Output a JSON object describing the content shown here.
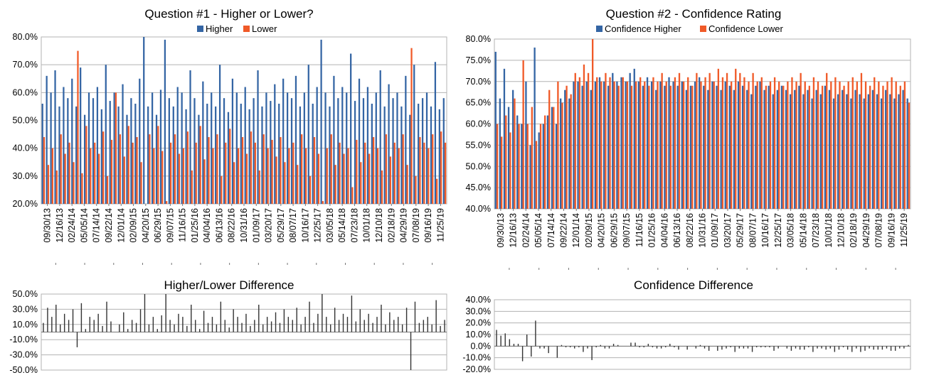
{
  "colors": {
    "higher": "#3465a4",
    "lower": "#f05a28",
    "diff": "#333333",
    "grid": "#b3b3b3",
    "axis": "#777777"
  },
  "chart_data": [
    {
      "id": "q1",
      "type": "bar",
      "title": "Question #1 - Higher or Lower?",
      "legend": [
        "Higher",
        "Lower"
      ],
      "legend_position": "top",
      "ylim": [
        0.2,
        0.8
      ],
      "y_ticks": [
        "20.0%",
        "30.0%",
        "40.0%",
        "50.0%",
        "60.0%",
        "70.0%",
        "80.0%"
      ],
      "x_labels": [
        "09/30/13",
        "12/16/13",
        "02/24/14",
        "05/05/14",
        "07/14/14",
        "09/22/14",
        "12/01/14",
        "02/09/15",
        "04/20/15",
        "06/29/15",
        "09/07/15",
        "11/16/15",
        "01/25/16",
        "04/04/16",
        "06/13/16",
        "08/22/16",
        "10/31/16",
        "01/09/17",
        "03/20/17",
        "05/29/17",
        "08/07/17",
        "10/16/17",
        "12/25/17",
        "03/05/18",
        "05/14/18",
        "07/23/18",
        "10/01/18",
        "12/10/18",
        "02/18/19",
        "04/29/19",
        "07/08/19",
        "09/16/19",
        "11/25/19"
      ],
      "series": [
        {
          "name": "Higher",
          "values": [
            0.56,
            0.66,
            0.6,
            0.68,
            0.55,
            0.62,
            0.58,
            0.65,
            0.55,
            0.69,
            0.52,
            0.6,
            0.58,
            0.62,
            0.54,
            0.7,
            0.57,
            0.6,
            0.55,
            0.63,
            0.52,
            0.58,
            0.56,
            0.65,
            0.8,
            0.55,
            0.6,
            0.52,
            0.61,
            0.79,
            0.58,
            0.55,
            0.62,
            0.6,
            0.54,
            0.68,
            0.58,
            0.52,
            0.64,
            0.56,
            0.6,
            0.55,
            0.7,
            0.58,
            0.53,
            0.65,
            0.6,
            0.56,
            0.62,
            0.54,
            0.58,
            0.68,
            0.55,
            0.6,
            0.57,
            0.63,
            0.56,
            0.65,
            0.6,
            0.58,
            0.66,
            0.55,
            0.6,
            0.7,
            0.56,
            0.62,
            0.79,
            0.6,
            0.55,
            0.66,
            0.58,
            0.62,
            0.6,
            0.74,
            0.57,
            0.65,
            0.58,
            0.62,
            0.56,
            0.6,
            0.68,
            0.55,
            0.63,
            0.58,
            0.6,
            0.55,
            0.66,
            0.52,
            0.7,
            0.56,
            0.58,
            0.6,
            0.55,
            0.71,
            0.54,
            0.58
          ]
        },
        {
          "name": "Lower",
          "values": [
            0.44,
            0.34,
            0.4,
            0.32,
            0.45,
            0.38,
            0.42,
            0.35,
            0.75,
            0.31,
            0.48,
            0.4,
            0.42,
            0.38,
            0.46,
            0.3,
            0.43,
            0.6,
            0.45,
            0.37,
            0.48,
            0.42,
            0.44,
            0.35,
            0.2,
            0.45,
            0.4,
            0.48,
            0.39,
            0.21,
            0.42,
            0.45,
            0.38,
            0.4,
            0.46,
            0.32,
            0.42,
            0.48,
            0.36,
            0.44,
            0.4,
            0.45,
            0.3,
            0.42,
            0.47,
            0.35,
            0.4,
            0.44,
            0.38,
            0.46,
            0.42,
            0.32,
            0.45,
            0.4,
            0.43,
            0.37,
            0.44,
            0.35,
            0.4,
            0.42,
            0.34,
            0.45,
            0.4,
            0.3,
            0.44,
            0.38,
            0.21,
            0.4,
            0.45,
            0.34,
            0.42,
            0.38,
            0.4,
            0.26,
            0.43,
            0.35,
            0.42,
            0.38,
            0.44,
            0.4,
            0.32,
            0.45,
            0.37,
            0.42,
            0.4,
            0.45,
            0.34,
            0.76,
            0.3,
            0.44,
            0.42,
            0.4,
            0.45,
            0.29,
            0.46,
            0.42
          ]
        }
      ]
    },
    {
      "id": "q2",
      "type": "bar",
      "title": "Question #2 - Confidence Rating",
      "legend": [
        "Confidence Higher",
        "Confidence Lower"
      ],
      "legend_position": "top",
      "ylim": [
        0.4,
        0.8
      ],
      "y_ticks": [
        "40.0%",
        "45.0%",
        "50.0%",
        "55.0%",
        "60.0%",
        "65.0%",
        "70.0%",
        "75.0%",
        "80.0%"
      ],
      "x_labels": [
        "09/30/13",
        "12/16/13",
        "02/24/14",
        "05/05/14",
        "07/14/14",
        "09/22/14",
        "12/01/14",
        "02/09/15",
        "04/20/15",
        "06/29/15",
        "09/07/15",
        "11/16/15",
        "01/25/16",
        "04/04/16",
        "06/13/16",
        "08/22/16",
        "10/31/16",
        "01/09/17",
        "03/20/17",
        "05/29/17",
        "08/07/17",
        "10/16/17",
        "12/25/17",
        "03/05/18",
        "05/14/18",
        "07/23/18",
        "10/01/18",
        "12/10/18",
        "02/18/19",
        "04/29/19",
        "07/08/19",
        "09/16/19",
        "11/25/19"
      ],
      "series": [
        {
          "name": "Confidence Higher",
          "values": [
            0.77,
            0.66,
            0.73,
            0.64,
            0.68,
            0.62,
            0.6,
            0.7,
            0.55,
            0.78,
            0.58,
            0.6,
            0.62,
            0.64,
            0.6,
            0.66,
            0.68,
            0.66,
            0.7,
            0.7,
            0.69,
            0.7,
            0.68,
            0.7,
            0.71,
            0.7,
            0.69,
            0.72,
            0.7,
            0.71,
            0.7,
            0.72,
            0.73,
            0.7,
            0.69,
            0.71,
            0.7,
            0.68,
            0.7,
            0.69,
            0.71,
            0.7,
            0.69,
            0.7,
            0.68,
            0.69,
            0.7,
            0.71,
            0.69,
            0.68,
            0.7,
            0.69,
            0.68,
            0.7,
            0.69,
            0.68,
            0.7,
            0.69,
            0.68,
            0.67,
            0.69,
            0.7,
            0.68,
            0.69,
            0.67,
            0.68,
            0.69,
            0.68,
            0.67,
            0.68,
            0.69,
            0.67,
            0.68,
            0.66,
            0.68,
            0.67,
            0.69,
            0.68,
            0.66,
            0.67,
            0.68,
            0.67,
            0.66,
            0.68,
            0.67,
            0.66,
            0.67,
            0.68,
            0.67,
            0.66,
            0.68,
            0.67,
            0.66,
            0.67,
            0.68,
            0.66
          ]
        },
        {
          "name": "Confidence Lower",
          "values": [
            0.6,
            0.57,
            0.62,
            0.58,
            0.66,
            0.6,
            0.75,
            0.6,
            0.64,
            0.56,
            0.6,
            0.62,
            0.68,
            0.64,
            0.7,
            0.65,
            0.69,
            0.67,
            0.72,
            0.71,
            0.74,
            0.72,
            0.8,
            0.71,
            0.7,
            0.72,
            0.71,
            0.7,
            0.69,
            0.71,
            0.7,
            0.69,
            0.7,
            0.71,
            0.7,
            0.69,
            0.71,
            0.7,
            0.72,
            0.7,
            0.69,
            0.71,
            0.72,
            0.7,
            0.71,
            0.69,
            0.72,
            0.7,
            0.71,
            0.72,
            0.7,
            0.73,
            0.71,
            0.72,
            0.7,
            0.73,
            0.72,
            0.71,
            0.7,
            0.72,
            0.7,
            0.71,
            0.69,
            0.7,
            0.71,
            0.7,
            0.69,
            0.7,
            0.71,
            0.7,
            0.72,
            0.7,
            0.69,
            0.71,
            0.7,
            0.69,
            0.72,
            0.7,
            0.71,
            0.7,
            0.69,
            0.7,
            0.71,
            0.7,
            0.72,
            0.7,
            0.69,
            0.71,
            0.7,
            0.69,
            0.7,
            0.71,
            0.7,
            0.69,
            0.7,
            0.65
          ]
        }
      ]
    },
    {
      "id": "d1",
      "type": "bar",
      "title": "Higher/Lower Difference",
      "ylim": [
        -0.5,
        0.5
      ],
      "y_ticks": [
        "-50.0%",
        "-30.0%",
        "-10.0%",
        "10.0%",
        "30.0%",
        "50.0%"
      ],
      "series": [
        {
          "name": "",
          "values": [
            0.12,
            0.32,
            0.2,
            0.36,
            0.1,
            0.24,
            0.16,
            0.3,
            -0.2,
            0.38,
            0.04,
            0.2,
            0.16,
            0.24,
            0.08,
            0.4,
            0.14,
            0.0,
            0.1,
            0.26,
            0.04,
            0.16,
            0.12,
            0.3,
            0.5,
            0.1,
            0.2,
            0.04,
            0.22,
            0.5,
            0.16,
            0.1,
            0.24,
            0.2,
            0.08,
            0.36,
            0.16,
            0.04,
            0.28,
            0.12,
            0.2,
            0.1,
            0.4,
            0.16,
            0.06,
            0.3,
            0.2,
            0.12,
            0.24,
            0.08,
            0.16,
            0.36,
            0.1,
            0.2,
            0.14,
            0.26,
            0.12,
            0.3,
            0.2,
            0.16,
            0.32,
            0.1,
            0.2,
            0.4,
            0.12,
            0.24,
            0.5,
            0.2,
            0.1,
            0.32,
            0.16,
            0.24,
            0.2,
            0.48,
            0.14,
            0.3,
            0.16,
            0.24,
            0.12,
            0.2,
            0.36,
            0.1,
            0.26,
            0.16,
            0.2,
            0.1,
            0.32,
            -0.5,
            0.4,
            0.12,
            0.16,
            0.2,
            0.1,
            0.42,
            0.08,
            0.16
          ]
        }
      ]
    },
    {
      "id": "d2",
      "type": "bar",
      "title": "Confidence Difference",
      "ylim": [
        -0.2,
        0.4
      ],
      "y_ticks": [
        "-20.0%",
        "-10.0%",
        "0.0%",
        "10.0%",
        "20.0%",
        "30.0%",
        "40.0%"
      ],
      "series": [
        {
          "name": "",
          "values": [
            0.14,
            0.09,
            0.11,
            0.06,
            0.02,
            0.02,
            -0.13,
            0.1,
            -0.09,
            0.22,
            -0.02,
            -0.02,
            -0.06,
            0.0,
            -0.1,
            0.01,
            -0.01,
            -0.01,
            -0.02,
            -0.01,
            -0.05,
            -0.02,
            -0.12,
            -0.01,
            0.01,
            -0.02,
            -0.02,
            0.02,
            0.01,
            0.0,
            0.0,
            0.03,
            0.03,
            -0.01,
            -0.01,
            0.02,
            -0.01,
            -0.02,
            -0.02,
            -0.01,
            0.02,
            -0.01,
            -0.03,
            0.0,
            -0.03,
            0.0,
            -0.02,
            0.01,
            -0.02,
            -0.04,
            0.0,
            -0.04,
            -0.03,
            -0.02,
            -0.01,
            -0.05,
            -0.02,
            -0.02,
            -0.02,
            -0.05,
            -0.01,
            -0.01,
            -0.01,
            -0.01,
            -0.04,
            -0.02,
            0.0,
            -0.02,
            -0.04,
            -0.02,
            -0.03,
            -0.03,
            -0.01,
            -0.05,
            -0.02,
            -0.02,
            -0.03,
            -0.02,
            -0.05,
            -0.03,
            -0.01,
            -0.03,
            -0.05,
            -0.02,
            -0.05,
            -0.04,
            -0.02,
            -0.03,
            -0.03,
            -0.03,
            -0.02,
            -0.04,
            -0.04,
            -0.02,
            -0.02,
            0.01
          ]
        }
      ]
    }
  ]
}
